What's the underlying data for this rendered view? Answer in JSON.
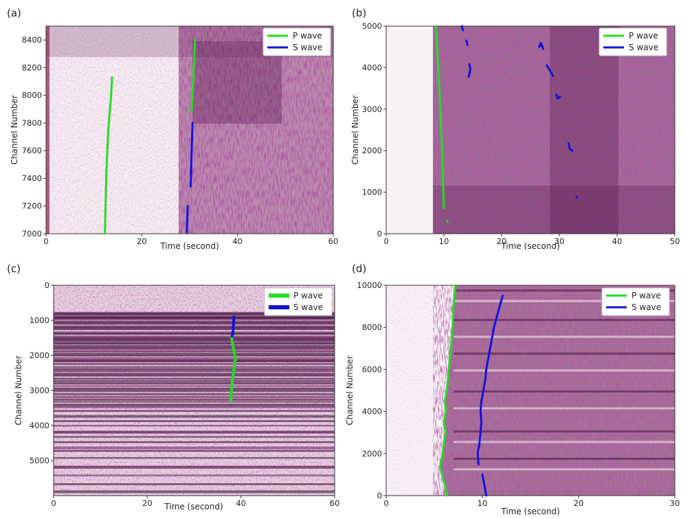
{
  "chart_data": [
    {
      "id": "a",
      "panel_label": "(a)",
      "type": "scatter",
      "xlabel": "Time (second)",
      "ylabel": "Channel Number",
      "xlim": [
        0,
        60
      ],
      "ylim": [
        7000,
        8500
      ],
      "y_inverted": false,
      "xticks": [
        0,
        20,
        40,
        60
      ],
      "yticks": [
        7000,
        7200,
        7400,
        7600,
        7800,
        8000,
        8200,
        8400
      ],
      "legend": {
        "position": "top-right",
        "entries": [
          "P wave",
          "S wave"
        ]
      },
      "series": [
        {
          "name": "P wave",
          "color": "#22dd22",
          "segments": [
            [
              [
                12.3,
                7000
              ],
              [
                12.4,
                7150
              ],
              [
                12.5,
                7300
              ],
              [
                12.6,
                7450
              ],
              [
                12.8,
                7600
              ],
              [
                13.0,
                7750
              ],
              [
                13.3,
                7880
              ],
              [
                13.6,
                8000
              ],
              [
                13.8,
                8130
              ]
            ],
            [
              [
                30.4,
                7880
              ],
              [
                30.6,
                8000
              ],
              [
                30.8,
                8150
              ],
              [
                31.0,
                8300
              ],
              [
                31.1,
                8400
              ]
            ]
          ]
        },
        {
          "name": "S wave",
          "color": "#1111dd",
          "segments": [
            [
              [
                29.4,
                7010
              ],
              [
                29.5,
                7100
              ],
              [
                29.6,
                7200
              ]
            ],
            [
              [
                30.2,
                7340
              ],
              [
                30.3,
                7450
              ],
              [
                30.4,
                7580
              ],
              [
                30.5,
                7700
              ],
              [
                30.6,
                7800
              ]
            ]
          ]
        }
      ]
    },
    {
      "id": "b",
      "panel_label": "(b)",
      "type": "scatter",
      "xlabel": "Time (second)",
      "ylabel": "Channel Number",
      "xlim": [
        0,
        50
      ],
      "ylim": [
        0,
        5000
      ],
      "y_inverted": false,
      "xticks": [
        0,
        10,
        20,
        30,
        40,
        50
      ],
      "yticks": [
        0,
        1000,
        2000,
        3000,
        4000,
        5000
      ],
      "legend": {
        "position": "top-right",
        "entries": [
          "P wave",
          "S wave"
        ]
      },
      "series": [
        {
          "name": "P wave",
          "color": "#22dd22",
          "segments": [
            [
              [
                10.0,
                620
              ],
              [
                9.9,
                1000
              ],
              [
                9.8,
                1500
              ],
              [
                9.7,
                2000
              ],
              [
                9.5,
                2500
              ],
              [
                9.4,
                3000
              ],
              [
                9.2,
                3500
              ],
              [
                9.0,
                4000
              ],
              [
                8.8,
                4500
              ],
              [
                8.6,
                5000
              ]
            ],
            [
              [
                10.6,
                300
              ]
            ]
          ]
        },
        {
          "name": "S wave",
          "color": "#1111dd",
          "segments": [
            [
              [
                13.1,
                5000
              ],
              [
                13.3,
                4900
              ]
            ],
            [
              [
                13.9,
                4650
              ],
              [
                14.1,
                4550
              ]
            ],
            [
              [
                14.4,
                4080
              ],
              [
                14.6,
                3950
              ],
              [
                14.3,
                3780
              ]
            ],
            [
              [
                26.5,
                4500
              ],
              [
                26.8,
                4600
              ],
              [
                27.2,
                4450
              ]
            ],
            [
              [
                27.8,
                4060
              ],
              [
                28.3,
                3950
              ],
              [
                28.9,
                3800
              ]
            ],
            [
              [
                29.5,
                3350
              ],
              [
                29.7,
                3250
              ],
              [
                30.1,
                3300
              ]
            ],
            [
              [
                31.6,
                2180
              ],
              [
                31.8,
                2050
              ],
              [
                32.2,
                2000
              ]
            ],
            [
              [
                33.0,
                880
              ]
            ]
          ]
        }
      ]
    },
    {
      "id": "c",
      "panel_label": "(c)",
      "type": "scatter",
      "xlabel": "Time (second)",
      "ylabel": "Channel Number",
      "xlim": [
        0,
        60
      ],
      "ylim": [
        6000,
        0
      ],
      "y_inverted": true,
      "xticks": [
        0,
        20,
        40,
        60
      ],
      "yticks": [
        0,
        1000,
        2000,
        3000,
        4000,
        5000
      ],
      "legend": {
        "position": "top-right",
        "entries": [
          "P wave",
          "S wave"
        ]
      },
      "series": [
        {
          "name": "P wave",
          "color": "#22dd22",
          "segments": [
            [
              [
                38.0,
                1500
              ],
              [
                38.4,
                1800
              ],
              [
                38.8,
                2100
              ],
              [
                38.5,
                2400
              ],
              [
                38.2,
                2700
              ],
              [
                38.0,
                3000
              ],
              [
                37.8,
                3300
              ]
            ]
          ]
        },
        {
          "name": "S wave",
          "color": "#1111dd",
          "segments": [
            [
              [
                38.5,
                900
              ],
              [
                38.4,
                1100
              ],
              [
                38.3,
                1300
              ],
              [
                38.1,
                1450
              ]
            ]
          ]
        }
      ]
    },
    {
      "id": "d",
      "panel_label": "(d)",
      "type": "scatter",
      "xlabel": "Time (second)",
      "ylabel": "Channel Number",
      "xlim": [
        0,
        30
      ],
      "ylim": [
        0,
        10000
      ],
      "y_inverted": false,
      "xticks": [
        0,
        10,
        20,
        30
      ],
      "yticks": [
        0,
        2000,
        4000,
        6000,
        8000,
        10000
      ],
      "legend": {
        "position": "top-right",
        "entries": [
          "P wave",
          "S wave"
        ]
      },
      "series": [
        {
          "name": "P wave",
          "color": "#22dd22",
          "segments": [
            [
              [
                6.3,
                0
              ],
              [
                6.1,
                500
              ],
              [
                5.8,
                1000
              ],
              [
                5.6,
                1400
              ],
              [
                5.8,
                1800
              ],
              [
                6.0,
                2500
              ],
              [
                6.2,
                3000
              ],
              [
                6.0,
                3500
              ],
              [
                6.2,
                4000
              ],
              [
                6.1,
                4500
              ],
              [
                6.3,
                5000
              ],
              [
                6.5,
                6000
              ],
              [
                6.7,
                7000
              ],
              [
                6.9,
                8000
              ],
              [
                7.0,
                9000
              ],
              [
                7.1,
                9500
              ],
              [
                7.2,
                10000
              ]
            ]
          ]
        },
        {
          "name": "S wave",
          "color": "#1111dd",
          "segments": [
            [
              [
                10.4,
                0
              ],
              [
                10.2,
                500
              ],
              [
                10.0,
                1000
              ]
            ],
            [
              [
                9.6,
                1500
              ],
              [
                9.5,
                2000
              ],
              [
                9.7,
                2500
              ],
              [
                9.8,
                3000
              ],
              [
                9.9,
                3500
              ],
              [
                9.8,
                4000
              ],
              [
                9.9,
                4500
              ],
              [
                10.1,
                5000
              ],
              [
                10.3,
                5500
              ],
              [
                10.4,
                6000
              ],
              [
                10.6,
                6500
              ],
              [
                10.8,
                7000
              ],
              [
                11.0,
                7500
              ],
              [
                11.2,
                8000
              ],
              [
                11.5,
                8500
              ],
              [
                11.8,
                9000
              ],
              [
                12.1,
                9500
              ]
            ]
          ]
        }
      ]
    }
  ]
}
